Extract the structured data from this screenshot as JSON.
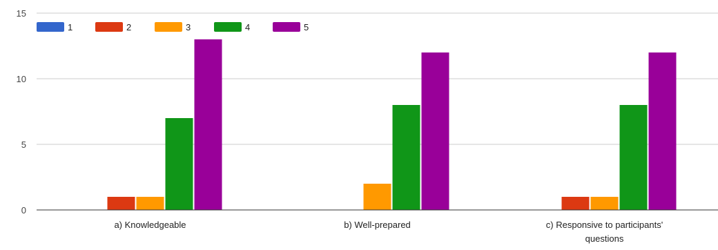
{
  "chart_data": {
    "type": "bar",
    "title": "",
    "xlabel": "",
    "ylabel": "",
    "ylim": [
      0,
      15
    ],
    "yticks": [
      0,
      5,
      10,
      15
    ],
    "grid": true,
    "legend_position": "top-left",
    "categories": [
      [
        "a) Knowledgeable"
      ],
      [
        "b) Well-prepared"
      ],
      [
        "c) Responsive to participants'",
        "questions"
      ]
    ],
    "series": [
      {
        "name": "1",
        "color": "#3366cc",
        "values": [
          0,
          0,
          0
        ]
      },
      {
        "name": "2",
        "color": "#dc3912",
        "values": [
          1,
          0,
          1
        ]
      },
      {
        "name": "3",
        "color": "#ff9900",
        "values": [
          1,
          2,
          1
        ]
      },
      {
        "name": "4",
        "color": "#109618",
        "values": [
          7,
          8,
          8
        ]
      },
      {
        "name": "5",
        "color": "#990099",
        "values": [
          13,
          12,
          12
        ]
      }
    ]
  }
}
